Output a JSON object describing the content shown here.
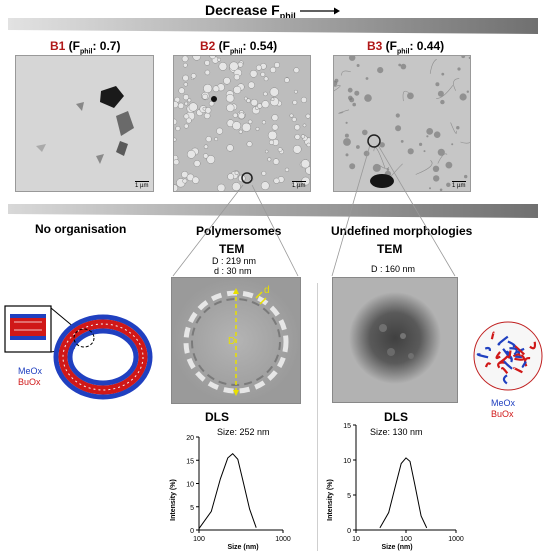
{
  "header": {
    "decrease_label": "Decrease F",
    "decrease_sub": "phil"
  },
  "samples": [
    {
      "id": "B1",
      "open": " (F",
      "sub": "phil",
      "value": ": 0.7)",
      "scale_bar": "1 µm"
    },
    {
      "id": "B2",
      "open": " (F",
      "sub": "phil",
      "value": ": 0.54)",
      "scale_bar": "1 µm"
    },
    {
      "id": "B3",
      "open": " (F",
      "sub": "phil",
      "value": ": 0.44)",
      "scale_bar": "1 µm"
    }
  ],
  "sections": {
    "no_org": "No organisation",
    "polymersomes": "Polymersomes",
    "undefined": "Undefined morphologies"
  },
  "tem_left": {
    "title": "TEM",
    "d_outer": "D : 219 nm",
    "d_inner": "d : 30 nm",
    "label_D": "D",
    "label_d": "d"
  },
  "tem_right": {
    "title": "TEM",
    "d_outer": "D : 160 nm"
  },
  "legend_left": {
    "meox": "MeOx",
    "buox": "BuOx"
  },
  "legend_right": {
    "meox": "MeOx",
    "buox": "BuOx"
  },
  "colors": {
    "meox": "#2040c0",
    "buox": "#d01818",
    "accent_red": "#b01818",
    "bar_gray": "#8a8a8a",
    "tem_dash": "#e8e000"
  },
  "chart_data": [
    {
      "type": "line",
      "title": "DLS",
      "subtitle": "Size: 252 nm",
      "xlabel": "Size (nm)",
      "ylabel": "Intensity (%)",
      "xscale": "log",
      "xlim": [
        100,
        1000
      ],
      "ylim": [
        0,
        20
      ],
      "xticks": [
        100,
        1000
      ],
      "yticks": [
        0,
        5,
        10,
        15,
        20
      ],
      "series": [
        {
          "x": [
            100,
            140,
            180,
            220,
            252,
            290,
            340,
            400,
            480
          ],
          "y": [
            0.3,
            4,
            11,
            15.5,
            16.4,
            15.2,
            10,
            4.5,
            0.5
          ]
        }
      ]
    },
    {
      "type": "line",
      "title": "DLS",
      "subtitle": "Size: 130 nm",
      "xlabel": "Size (nm)",
      "ylabel": "Intensity (%)",
      "xscale": "log",
      "xlim": [
        10,
        1000
      ],
      "ylim": [
        0,
        15
      ],
      "xticks": [
        10,
        100,
        1000
      ],
      "yticks": [
        0,
        5,
        10,
        15
      ],
      "series": [
        {
          "x": [
            30,
            45,
            60,
            80,
            100,
            120,
            150,
            200,
            260
          ],
          "y": [
            0.3,
            2.5,
            6,
            9.5,
            10.3,
            9.8,
            6.5,
            2,
            0.3
          ]
        }
      ]
    }
  ]
}
